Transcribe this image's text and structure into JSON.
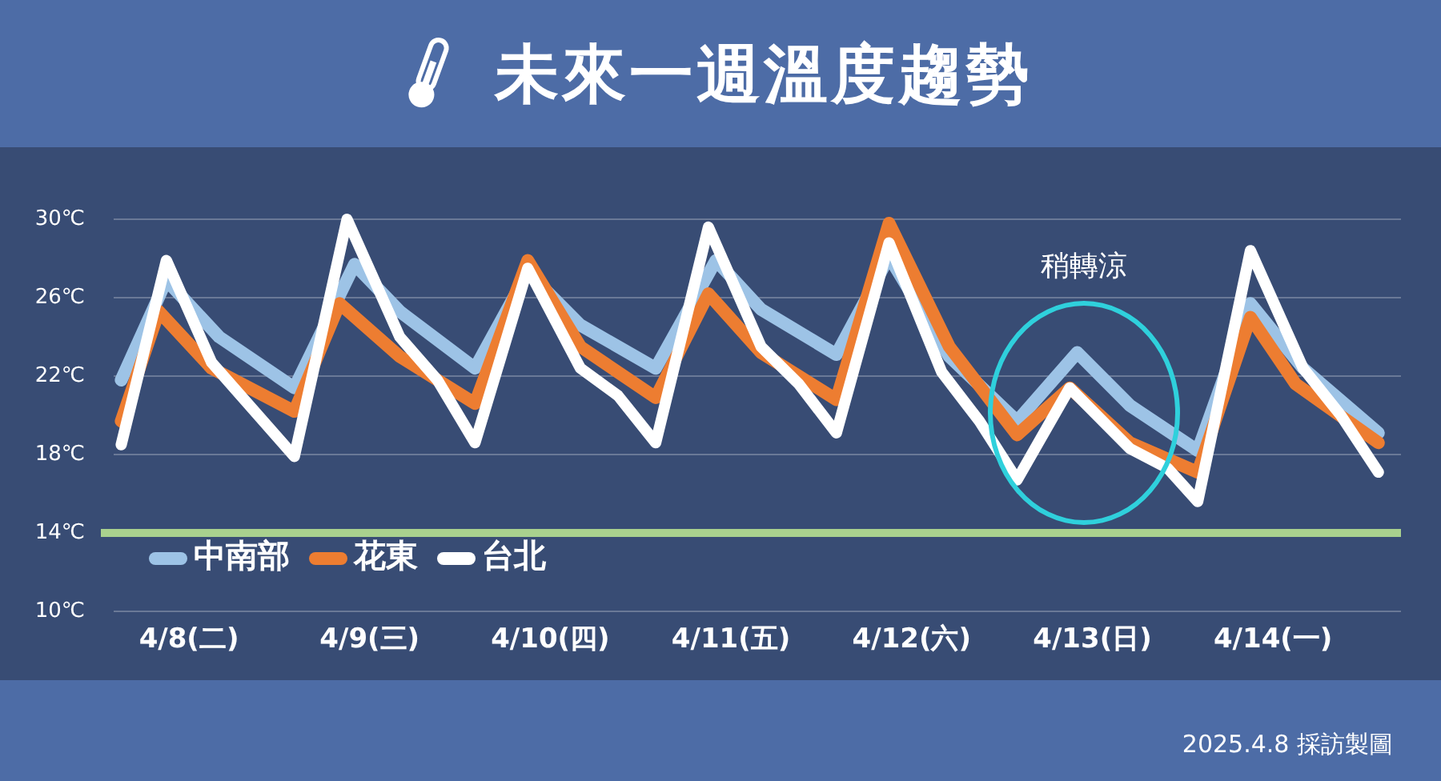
{
  "chart_data": {
    "type": "line",
    "title": "未來一週溫度趨勢",
    "xlim": [
      "--04-08T02:00",
      "--04-15T05:00"
    ],
    "xticks": [
      {
        "value": "--04-08T12:00",
        "label": "4/8(二)"
      },
      {
        "value": "--04-09T12:00",
        "label": "4/9(三)"
      },
      {
        "value": "--04-10T12:00",
        "label": "4/10(四)"
      },
      {
        "value": "--04-11T12:00",
        "label": "4/11(五)"
      },
      {
        "value": "--04-12T12:00",
        "label": "4/12(六)"
      },
      {
        "value": "--04-13T12:00",
        "label": "4/13(日)"
      },
      {
        "value": "--04-14T12:00",
        "label": "4/14(一)"
      }
    ],
    "ylim": [
      10,
      30
    ],
    "yticks": [
      {
        "value": 10,
        "label": "10℃"
      },
      {
        "value": 14,
        "label": "14℃"
      },
      {
        "value": 18,
        "label": "18℃"
      },
      {
        "value": 22,
        "label": "22℃"
      },
      {
        "value": 26,
        "label": "26℃"
      },
      {
        "value": 30,
        "label": "30℃"
      }
    ],
    "grid": "y",
    "legend": "bottom left",
    "marker": "none",
    "line_style": "solid",
    "series": [
      {
        "name": "中南部",
        "color": "#9dc3e6",
        "x": [
          "--04-08T03:00",
          "--04-08T09:00",
          "--04-08T16:00",
          "--04-09T02:00",
          "--04-09T10:00",
          "--04-09T16:00",
          "--04-10T02:00",
          "--04-10T09:00",
          "--04-10T16:00",
          "--04-11T02:00",
          "--04-11T10:00",
          "--04-11T16:00",
          "--04-12T02:00",
          "--04-12T09:00",
          "--04-12T17:00",
          "--04-13T02:00",
          "--04-13T10:00",
          "--04-13T17:00",
          "--04-14T02:00",
          "--04-14T09:00",
          "--04-14T16:00",
          "--04-15T02:00"
        ],
        "values": [
          21.8,
          26.9,
          24.0,
          21.4,
          27.7,
          25.3,
          22.4,
          27.3,
          24.6,
          22.4,
          27.9,
          25.4,
          23.1,
          28.1,
          23.0,
          19.7,
          23.2,
          20.5,
          18.2,
          25.7,
          22.4,
          19.1
        ]
      },
      {
        "name": "花東",
        "color": "#ed7d31",
        "x": [
          "--04-08T03:00",
          "--04-08T08:00",
          "--04-08T15:00",
          "--04-09T02:00",
          "--04-09T08:00",
          "--04-09T16:00",
          "--04-10T02:00",
          "--04-10T09:00",
          "--04-10T16:00",
          "--04-11T02:00",
          "--04-11T09:00",
          "--04-11T16:00",
          "--04-12T02:00",
          "--04-12T09:00",
          "--04-12T17:00",
          "--04-13T02:00",
          "--04-13T09:00",
          "--04-13T17:00",
          "--04-14T02:00",
          "--04-14T09:00",
          "--04-14T15:00",
          "--04-15T02:00"
        ],
        "values": [
          19.7,
          25.3,
          22.4,
          20.2,
          25.7,
          23.0,
          20.6,
          27.9,
          23.5,
          20.9,
          26.2,
          23.2,
          20.8,
          29.8,
          23.5,
          19.0,
          21.4,
          18.6,
          17.1,
          25.0,
          21.6,
          18.6
        ]
      },
      {
        "name": "台北",
        "color": "#ffffff",
        "x": [
          "--04-08T03:00",
          "--04-08T09:00",
          "--04-08T15:00",
          "--04-09T02:00",
          "--04-09T09:00",
          "--04-09T16:00",
          "--04-09T21:00",
          "--04-10T02:00",
          "--04-10T09:00",
          "--04-10T16:00",
          "--04-10T21:00",
          "--04-11T02:00",
          "--04-11T09:00",
          "--04-11T16:00",
          "--04-11T21:00",
          "--04-12T02:00",
          "--04-12T09:00",
          "--04-12T16:00",
          "--04-12T21:00",
          "--04-13T02:00",
          "--04-13T09:00",
          "--04-13T17:00",
          "--04-13T22:00",
          "--04-14T02:00",
          "--04-14T09:00",
          "--04-14T16:00",
          "--04-14T21:00",
          "--04-15T02:00"
        ],
        "values": [
          18.5,
          27.9,
          22.7,
          17.9,
          30.0,
          24.0,
          21.8,
          18.6,
          27.5,
          22.4,
          21.0,
          18.6,
          29.6,
          23.5,
          21.6,
          19.1,
          28.8,
          22.2,
          19.7,
          16.7,
          21.4,
          18.3,
          17.3,
          15.6,
          28.4,
          22.4,
          20.0,
          17.1
        ]
      }
    ],
    "ref_lines": [
      {
        "axis": "y",
        "value": 14,
        "color": "#a9d18e"
      }
    ],
    "annotations": [
      "稍轉涼",
      "2025.4.8 採訪製圖"
    ]
  }
}
